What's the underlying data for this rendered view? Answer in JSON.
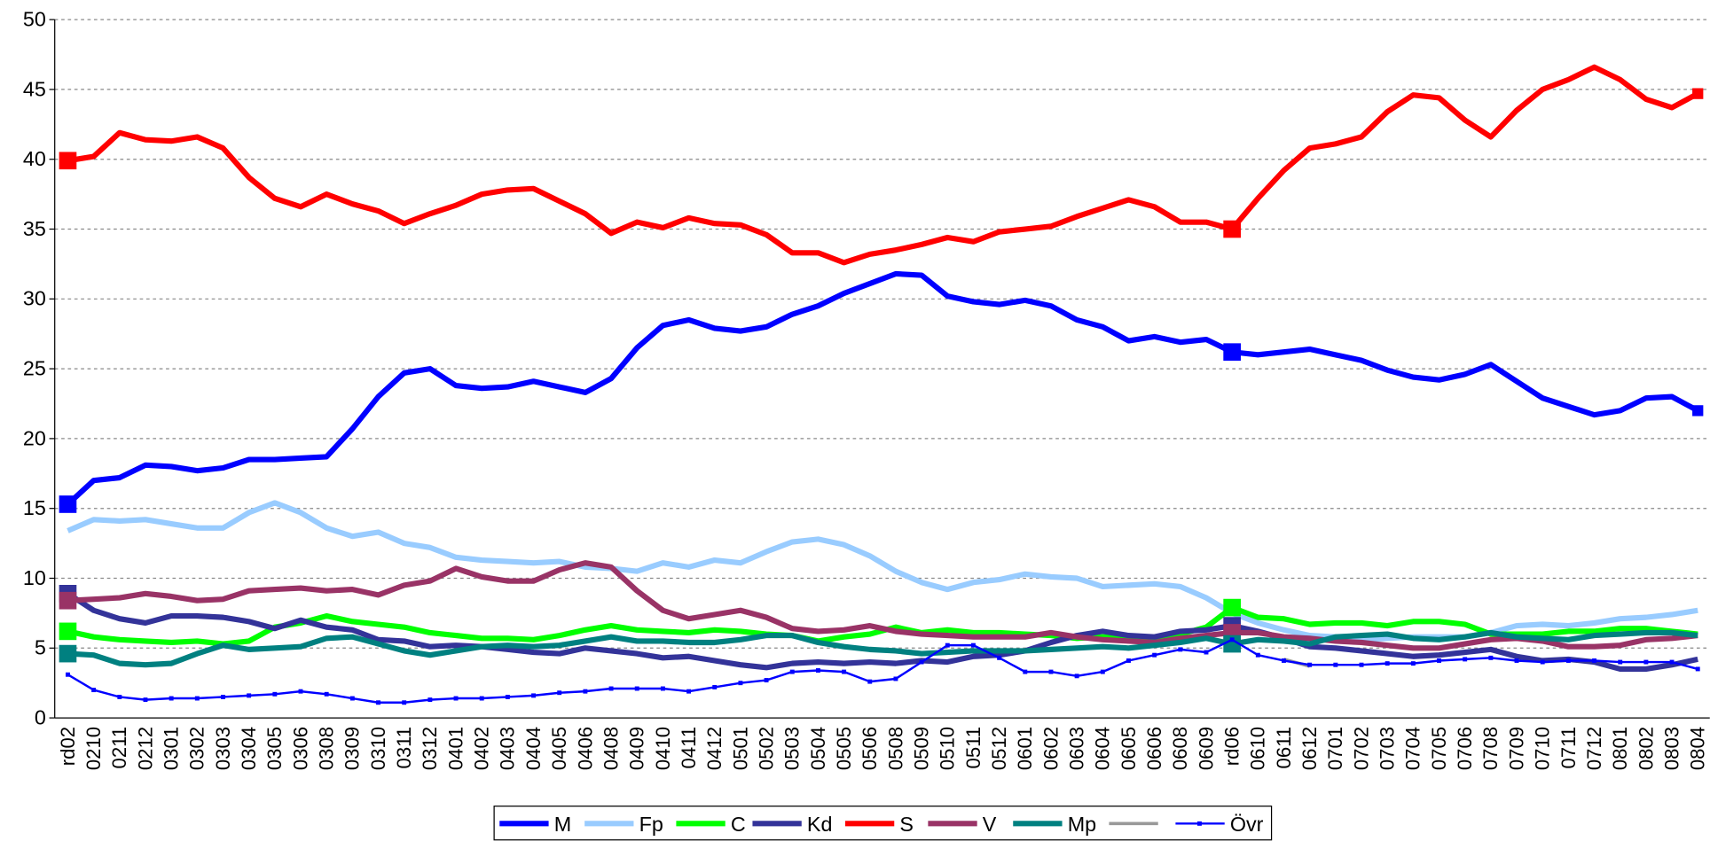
{
  "chart_data": {
    "type": "line",
    "categories": [
      "rd02",
      "0210",
      "0211",
      "0212",
      "0301",
      "0302",
      "0303",
      "0304",
      "0305",
      "0306",
      "0308",
      "0309",
      "0310",
      "0311",
      "0312",
      "0401",
      "0402",
      "0403",
      "0404",
      "0405",
      "0406",
      "0408",
      "0409",
      "0410",
      "0411",
      "0412",
      "0501",
      "0502",
      "0503",
      "0504",
      "0505",
      "0506",
      "0508",
      "0509",
      "0510",
      "0511",
      "0512",
      "0601",
      "0602",
      "0603",
      "0604",
      "0605",
      "0606",
      "0608",
      "0609",
      "rd06",
      "0610",
      "0611",
      "0612",
      "0701",
      "0702",
      "0703",
      "0704",
      "0705",
      "0706",
      "0708",
      "0709",
      "0710",
      "0711",
      "0712",
      "0801",
      "0802",
      "0803",
      "0804"
    ],
    "ylim": [
      0,
      50
    ],
    "yticks": [
      0,
      5,
      10,
      15,
      20,
      25,
      30,
      35,
      40,
      45,
      50
    ],
    "grid": true,
    "series": [
      {
        "name": "M",
        "color": "#0000ff",
        "width": 5,
        "markers": [
          0,
          45,
          63
        ],
        "values": [
          15.3,
          17,
          17.2,
          18.1,
          18,
          17.7,
          17.9,
          18.5,
          18.5,
          18.6,
          18.7,
          20.7,
          23,
          24.7,
          25,
          23.8,
          23.6,
          23.7,
          24.1,
          23.7,
          23.3,
          24.3,
          26.5,
          28.1,
          28.5,
          27.9,
          27.7,
          28,
          28.9,
          29.5,
          30.4,
          31.1,
          31.8,
          31.7,
          30.2,
          29.8,
          29.6,
          29.9,
          29.5,
          28.5,
          28,
          27,
          27.3,
          26.9,
          27.1,
          26.2,
          26,
          26.2,
          26.4,
          26,
          25.6,
          24.9,
          24.4,
          24.2,
          24.6,
          25.3,
          24.1,
          22.9,
          22.3,
          21.7,
          22,
          22.9,
          23,
          22
        ]
      },
      {
        "name": "Fp",
        "color": "#99ccff",
        "width": 5,
        "markers": [],
        "values": [
          13.4,
          14.2,
          14.1,
          14.2,
          13.9,
          13.6,
          13.6,
          14.7,
          15.4,
          14.7,
          13.6,
          13,
          13.3,
          12.5,
          12.2,
          11.5,
          11.3,
          11.2,
          11.1,
          11.2,
          10.8,
          10.7,
          10.5,
          11.1,
          10.8,
          11.3,
          11.1,
          11.9,
          12.6,
          12.8,
          12.4,
          11.6,
          10.5,
          9.7,
          9.2,
          9.7,
          9.9,
          10.3,
          10.1,
          10,
          9.4,
          9.5,
          9.6,
          9.4,
          8.6,
          7.5,
          6.8,
          6.3,
          5.9,
          5.8,
          5.6,
          5.7,
          5.8,
          5.8,
          5.8,
          6.1,
          6.6,
          6.7,
          6.6,
          6.8,
          7.1,
          7.2,
          7.4,
          7.7
        ]
      },
      {
        "name": "C",
        "color": "#00ff00",
        "width": 5,
        "markers": [
          0,
          45
        ],
        "values": [
          6.2,
          5.8,
          5.6,
          5.5,
          5.4,
          5.5,
          5.3,
          5.5,
          6.5,
          6.8,
          7.3,
          6.9,
          6.7,
          6.5,
          6.1,
          5.9,
          5.7,
          5.7,
          5.6,
          5.9,
          6.3,
          6.6,
          6.3,
          6.2,
          6.1,
          6.3,
          6.2,
          6,
          5.9,
          5.5,
          5.8,
          6,
          6.5,
          6.1,
          6.3,
          6.1,
          6.1,
          6,
          5.9,
          5.7,
          5.8,
          5.8,
          5.7,
          6,
          6.5,
          7.9,
          7.2,
          7.1,
          6.7,
          6.8,
          6.8,
          6.6,
          6.9,
          6.9,
          6.7,
          6,
          6,
          6,
          6.2,
          6.2,
          6.4,
          6.4,
          6.2,
          6
        ]
      },
      {
        "name": "Kd",
        "color": "#333399",
        "width": 5,
        "markers": [
          0,
          45
        ],
        "values": [
          8.9,
          7.7,
          7.1,
          6.8,
          7.3,
          7.3,
          7.2,
          6.9,
          6.4,
          7,
          6.5,
          6.3,
          5.6,
          5.5,
          5.1,
          5.2,
          5.1,
          4.9,
          4.7,
          4.6,
          5,
          4.8,
          4.6,
          4.3,
          4.4,
          4.1,
          3.8,
          3.6,
          3.9,
          4,
          3.9,
          4,
          3.9,
          4.1,
          4,
          4.4,
          4.5,
          4.8,
          5.4,
          5.9,
          6.2,
          5.9,
          5.8,
          6.2,
          6.3,
          6.6,
          6.2,
          5.7,
          5.1,
          5,
          4.8,
          4.6,
          4.4,
          4.5,
          4.7,
          4.9,
          4.4,
          4.1,
          4.2,
          4,
          3.5,
          3.5,
          3.8,
          4.2
        ]
      },
      {
        "name": "S",
        "color": "#ff0000",
        "width": 5,
        "markers": [
          0,
          45,
          63
        ],
        "values": [
          39.9,
          40.2,
          41.9,
          41.4,
          41.3,
          41.6,
          40.8,
          38.7,
          37.2,
          36.6,
          37.5,
          36.8,
          36.3,
          35.4,
          36.1,
          36.7,
          37.5,
          37.8,
          37.9,
          37,
          36.1,
          34.7,
          35.5,
          35.1,
          35.8,
          35.4,
          35.3,
          34.6,
          33.3,
          33.3,
          32.6,
          33.2,
          33.5,
          33.9,
          34.4,
          34.1,
          34.8,
          35,
          35.2,
          35.9,
          36.5,
          37.1,
          36.6,
          35.5,
          35.5,
          35,
          37.2,
          39.2,
          40.8,
          41.1,
          41.6,
          43.4,
          44.6,
          44.4,
          42.8,
          41.6,
          43.5,
          45,
          45.7,
          46.6,
          45.7,
          44.3,
          43.7,
          44.7
        ]
      },
      {
        "name": "V",
        "color": "#993366",
        "width": 5,
        "markers": [
          0,
          45
        ],
        "values": [
          8.4,
          8.5,
          8.6,
          8.9,
          8.7,
          8.4,
          8.5,
          9.1,
          9.2,
          9.3,
          9.1,
          9.2,
          8.8,
          9.5,
          9.8,
          10.7,
          10.1,
          9.8,
          9.8,
          10.6,
          11.1,
          10.8,
          9.1,
          7.7,
          7.1,
          7.4,
          7.7,
          7.2,
          6.4,
          6.2,
          6.3,
          6.6,
          6.2,
          6,
          5.9,
          5.8,
          5.8,
          5.8,
          6.1,
          5.8,
          5.6,
          5.5,
          5.4,
          5.7,
          5.9,
          6.1,
          6.1,
          5.8,
          5.7,
          5.5,
          5.4,
          5.2,
          5,
          5,
          5.3,
          5.6,
          5.7,
          5.5,
          5.1,
          5.1,
          5.2,
          5.6,
          5.7,
          5.9
        ]
      },
      {
        "name": "Mp",
        "color": "#008080",
        "width": 5,
        "markers": [
          0,
          45
        ],
        "values": [
          4.6,
          4.5,
          3.9,
          3.8,
          3.9,
          4.6,
          5.2,
          4.9,
          5,
          5.1,
          5.7,
          5.8,
          5.3,
          4.8,
          4.5,
          4.8,
          5.1,
          5.2,
          5.1,
          5.2,
          5.5,
          5.8,
          5.5,
          5.5,
          5.4,
          5.4,
          5.6,
          5.9,
          5.9,
          5.4,
          5.1,
          4.9,
          4.8,
          4.6,
          4.7,
          4.8,
          4.8,
          4.8,
          4.9,
          5,
          5.1,
          5,
          5.2,
          5.4,
          5.7,
          5.3,
          5.6,
          5.5,
          5.3,
          5.8,
          5.9,
          6,
          5.7,
          5.6,
          5.8,
          6.1,
          5.8,
          5.7,
          5.6,
          5.9,
          6,
          6.1,
          6.1,
          5.9
        ]
      },
      {
        "name": null,
        "color": "#999999",
        "width": 3,
        "markers": [],
        "values": [
          null,
          null,
          null,
          null,
          null,
          null,
          null,
          null,
          null,
          null,
          null,
          null,
          null,
          null,
          null,
          null,
          null,
          null,
          null,
          null,
          null,
          null,
          null,
          null,
          null,
          null,
          null,
          null,
          null,
          null,
          null,
          null,
          null,
          null,
          null,
          null,
          null,
          null,
          null,
          null,
          null,
          null,
          null,
          null,
          null,
          null,
          null,
          4.2,
          3.7,
          null,
          null,
          null,
          null,
          null,
          null,
          null,
          null,
          null,
          null,
          null,
          null,
          null,
          null,
          null
        ]
      },
      {
        "name": "Övr",
        "color": "#0000ff",
        "width": 2,
        "markers": [],
        "point_markers": true,
        "values": [
          3.1,
          2,
          1.5,
          1.3,
          1.4,
          1.4,
          1.5,
          1.6,
          1.7,
          1.9,
          1.7,
          1.4,
          1.1,
          1.1,
          1.3,
          1.4,
          1.4,
          1.5,
          1.6,
          1.8,
          1.9,
          2.1,
          2.1,
          2.1,
          1.9,
          2.2,
          2.5,
          2.7,
          3.3,
          3.4,
          3.3,
          2.6,
          2.8,
          4,
          5.2,
          5.2,
          4.3,
          3.3,
          3.3,
          3,
          3.3,
          4.1,
          4.5,
          4.9,
          4.7,
          5.6,
          4.5,
          4.1,
          3.8,
          3.8,
          3.8,
          3.9,
          3.9,
          4.1,
          4.2,
          4.3,
          4.1,
          4,
          4.1,
          4.1,
          4,
          4,
          4,
          3.5
        ]
      }
    ]
  }
}
